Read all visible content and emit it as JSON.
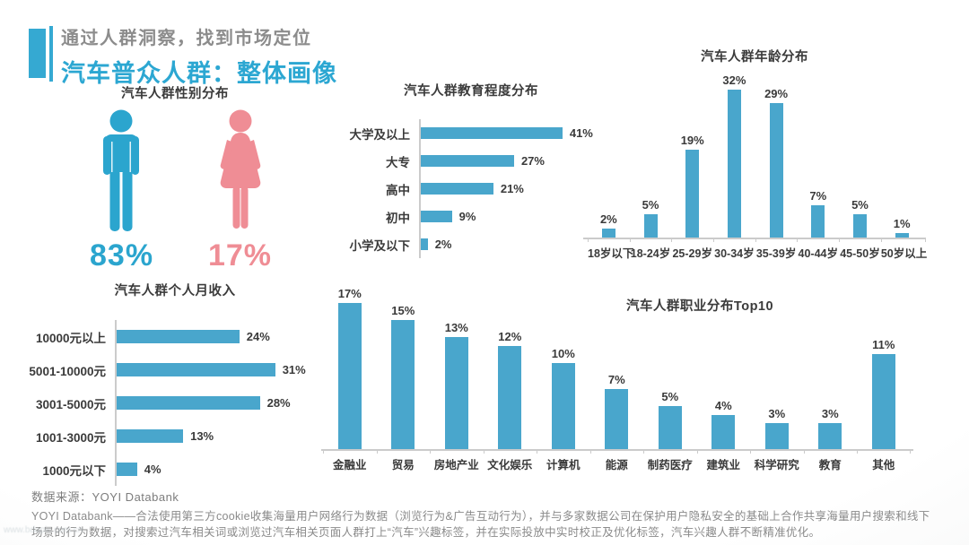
{
  "header": {
    "subtitle": "通过人群洞察，找到市场定位",
    "title": "汽车普众人群：整体画像"
  },
  "colors": {
    "accent_teal": "#2ca7d2",
    "bar_teal": "#49a6cc",
    "male_teal": "#2ba5ce",
    "female_pink": "#ef8d95",
    "axis_gray": "#cbcbcb",
    "text_gray": "#8c8c8c"
  },
  "gender": {
    "male_label": "83%",
    "female_label": "17%"
  },
  "chart_data": [
    {
      "id": "gender",
      "type": "pictogram",
      "title": "汽车人群性别分布",
      "categories": [
        "男",
        "女"
      ],
      "values": [
        83,
        17
      ],
      "unit": "%"
    },
    {
      "id": "education",
      "type": "bar",
      "orientation": "horizontal",
      "title": "汽车人群教育程度分布",
      "categories": [
        "大学及以上",
        "大专",
        "高中",
        "初中",
        "小学及以下"
      ],
      "values": [
        41,
        27,
        21,
        9,
        2
      ],
      "unit": "%",
      "xlim": [
        0,
        45
      ],
      "grid": false,
      "bar_color": "#49a6cc"
    },
    {
      "id": "age",
      "type": "bar",
      "orientation": "vertical",
      "title": "汽车人群年龄分布",
      "categories": [
        "18岁以下",
        "18-24岁",
        "25-29岁",
        "30-34岁",
        "35-39岁",
        "40-44岁",
        "45-50岁",
        "50岁以上"
      ],
      "values": [
        2,
        5,
        19,
        32,
        29,
        7,
        5,
        1
      ],
      "unit": "%",
      "ylim": [
        0,
        35
      ],
      "grid": false,
      "bar_color": "#49a6cc"
    },
    {
      "id": "income",
      "type": "bar",
      "orientation": "horizontal",
      "title": "汽车人群个人月收入",
      "categories": [
        "10000元以上",
        "5001-10000元",
        "3001-5000元",
        "1001-3000元",
        "1000元以下"
      ],
      "values": [
        24,
        31,
        28,
        13,
        4
      ],
      "unit": "%",
      "xlim": [
        0,
        35
      ],
      "grid": false,
      "bar_color": "#49a6cc"
    },
    {
      "id": "occupation",
      "type": "bar",
      "orientation": "vertical",
      "title": "汽车人群职业分布Top10",
      "categories": [
        "金融业",
        "贸易",
        "房地产业",
        "文化娱乐",
        "计算机",
        "能源",
        "制药医疗",
        "建筑业",
        "科学研究",
        "教育",
        "其他"
      ],
      "values": [
        17,
        15,
        13,
        12,
        10,
        7,
        5,
        4,
        3,
        3,
        11
      ],
      "unit": "%",
      "ylim": [
        0,
        20
      ],
      "grid": false,
      "bar_color": "#49a6cc"
    }
  ],
  "footer": {
    "source": "数据来源：YOYI Databank",
    "description": "YOYI Databank——合法使用第三方cookie收集海量用户网络行为数据（浏览行为&广告互动行为），并与多家数据公司在保护用户隐私安全的基础上合作共享海量用户搜索和线下场景的行为数据，对搜索过汽车相关词或浏览过汽车相关页面人群打上“汽车”兴趣标签，并在实际投放中实时校正及优化标签，汽车兴趣人群不断精准优化。",
    "watermark": "www.bdapic.com.cn"
  }
}
